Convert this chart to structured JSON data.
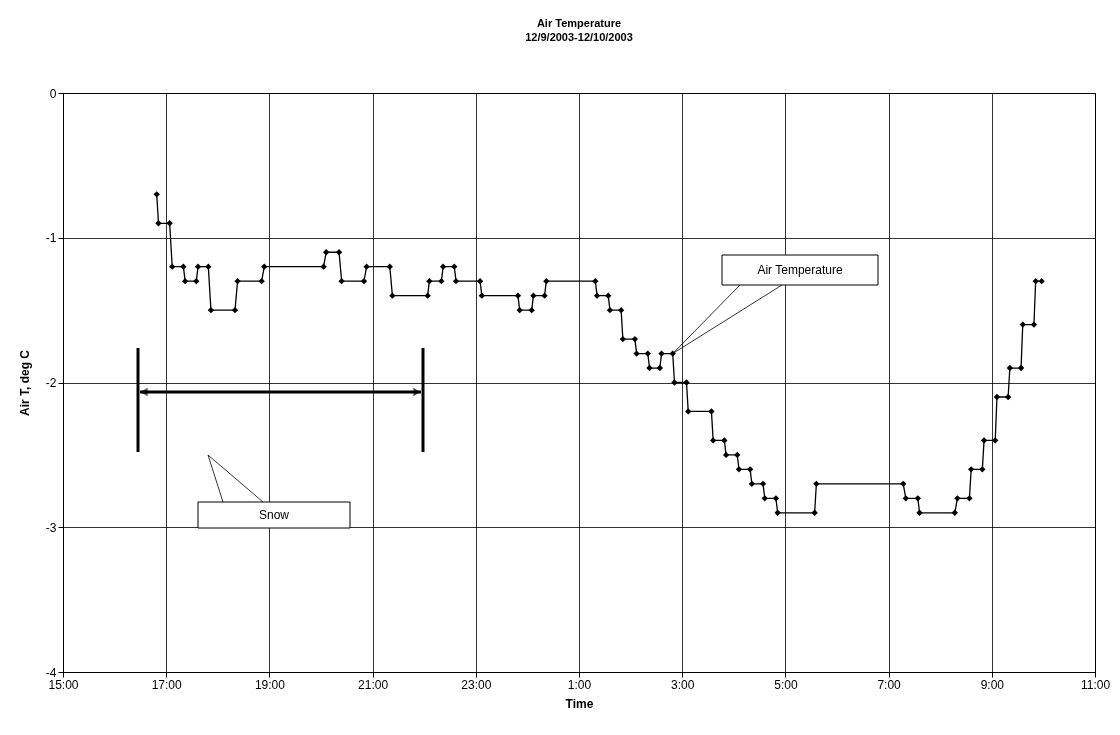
{
  "chart_data": {
    "type": "line",
    "title": "Air Temperature",
    "subtitle": "12/9/2003-12/10/2003",
    "xlabel": "Time",
    "ylabel": "Air T, deg C",
    "x": [
      "2003-12-09T16:49",
      "2003-12-09T16:51",
      "2003-12-09T17:04",
      "2003-12-09T17:07",
      "2003-12-09T17:20",
      "2003-12-09T17:22",
      "2003-12-09T17:35",
      "2003-12-09T17:37",
      "2003-12-09T17:49",
      "2003-12-09T17:52",
      "2003-12-09T18:20",
      "2003-12-09T18:23",
      "2003-12-09T18:51",
      "2003-12-09T18:54",
      "2003-12-09T20:03",
      "2003-12-09T20:06",
      "2003-12-09T20:21",
      "2003-12-09T20:24",
      "2003-12-09T20:50",
      "2003-12-09T20:53",
      "2003-12-09T21:20",
      "2003-12-09T21:23",
      "2003-12-09T22:04",
      "2003-12-09T22:06",
      "2003-12-09T22:20",
      "2003-12-09T22:22",
      "2003-12-09T22:35",
      "2003-12-09T22:37",
      "2003-12-09T23:05",
      "2003-12-09T23:07",
      "2003-12-09T23:49",
      "2003-12-09T23:51",
      "2003-12-10T00:05",
      "2003-12-10T00:07",
      "2003-12-10T00:20",
      "2003-12-10T00:22",
      "2003-12-10T01:19",
      "2003-12-10T01:21",
      "2003-12-10T01:34",
      "2003-12-10T01:36",
      "2003-12-10T01:49",
      "2003-12-10T01:51",
      "2003-12-10T02:05",
      "2003-12-10T02:07",
      "2003-12-10T02:20",
      "2003-12-10T02:22",
      "2003-12-10T02:34",
      "2003-12-10T02:36",
      "2003-12-10T02:49",
      "2003-12-10T02:51",
      "2003-12-10T03:05",
      "2003-12-10T03:07",
      "2003-12-10T03:34",
      "2003-12-10T03:36",
      "2003-12-10T03:49",
      "2003-12-10T03:51",
      "2003-12-10T04:04",
      "2003-12-10T04:06",
      "2003-12-10T04:19",
      "2003-12-10T04:21",
      "2003-12-10T04:34",
      "2003-12-10T04:36",
      "2003-12-10T04:49",
      "2003-12-10T04:51",
      "2003-12-10T05:34",
      "2003-12-10T05:36",
      "2003-12-10T07:17",
      "2003-12-10T07:20",
      "2003-12-10T07:34",
      "2003-12-10T07:36",
      "2003-12-10T08:17",
      "2003-12-10T08:20",
      "2003-12-10T08:34",
      "2003-12-10T08:36",
      "2003-12-10T08:49",
      "2003-12-10T08:51",
      "2003-12-10T09:04",
      "2003-12-10T09:06",
      "2003-12-10T09:19",
      "2003-12-10T09:21",
      "2003-12-10T09:34",
      "2003-12-10T09:36",
      "2003-12-10T09:49",
      "2003-12-10T09:51",
      "2003-12-10T09:58"
    ],
    "series": [
      {
        "name": "Air Temperature",
        "color": "#000000",
        "values": [
          -0.7,
          -0.9,
          -0.9,
          -1.2,
          -1.2,
          -1.3,
          -1.3,
          -1.2,
          -1.2,
          -1.5,
          -1.5,
          -1.3,
          -1.3,
          -1.2,
          -1.2,
          -1.1,
          -1.1,
          -1.3,
          -1.3,
          -1.2,
          -1.2,
          -1.4,
          -1.4,
          -1.3,
          -1.3,
          -1.2,
          -1.2,
          -1.3,
          -1.3,
          -1.4,
          -1.4,
          -1.5,
          -1.5,
          -1.4,
          -1.4,
          -1.3,
          -1.3,
          -1.4,
          -1.4,
          -1.5,
          -1.5,
          -1.7,
          -1.7,
          -1.8,
          -1.8,
          -1.9,
          -1.9,
          -1.8,
          -1.8,
          -2.0,
          -2.0,
          -2.2,
          -2.2,
          -2.4,
          -2.4,
          -2.5,
          -2.5,
          -2.6,
          -2.6,
          -2.7,
          -2.7,
          -2.8,
          -2.8,
          -2.9,
          -2.9,
          -2.7,
          -2.7,
          -2.8,
          -2.8,
          -2.9,
          -2.9,
          -2.8,
          -2.8,
          -2.6,
          -2.6,
          -2.4,
          -2.4,
          -2.1,
          -2.1,
          -1.9,
          -1.9,
          -1.6,
          -1.6,
          -1.3,
          -1.3
        ]
      }
    ],
    "xlim": [
      "2003-12-09T15:00",
      "2003-12-10T11:00"
    ],
    "ylim": [
      -4,
      0
    ],
    "xticks": [
      {
        "value": "2003-12-09T15:00",
        "label": "15:00"
      },
      {
        "value": "2003-12-09T17:00",
        "label": "17:00"
      },
      {
        "value": "2003-12-09T19:00",
        "label": "19:00"
      },
      {
        "value": "2003-12-09T21:00",
        "label": "21:00"
      },
      {
        "value": "2003-12-09T23:00",
        "label": "23:00"
      },
      {
        "value": "2003-12-10T01:00",
        "label": "1:00"
      },
      {
        "value": "2003-12-10T03:00",
        "label": "3:00"
      },
      {
        "value": "2003-12-10T05:00",
        "label": "5:00"
      },
      {
        "value": "2003-12-10T07:00",
        "label": "7:00"
      },
      {
        "value": "2003-12-10T09:00",
        "label": "9:00"
      },
      {
        "value": "2003-12-10T11:00",
        "label": "11:00"
      }
    ],
    "yticks": [
      0,
      -1,
      -2,
      -3,
      -4
    ],
    "grid": true,
    "marker": "diamond",
    "line_style": "solid",
    "annotations": [
      "Snow"
    ]
  }
}
